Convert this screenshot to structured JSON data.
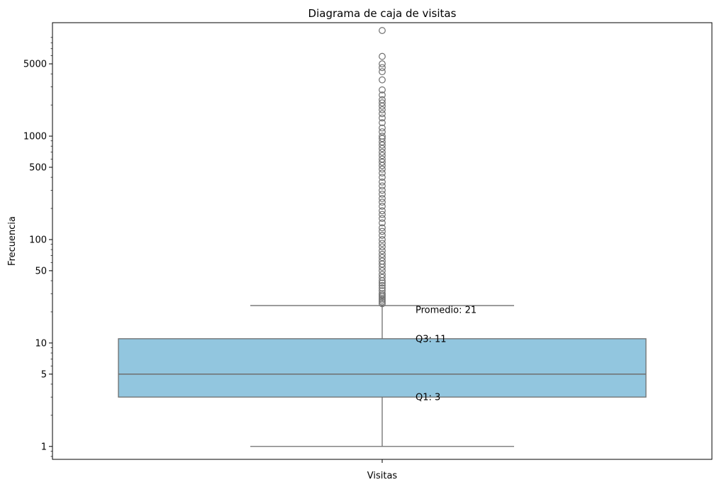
{
  "chart_data": {
    "type": "box",
    "title": "Diagrama de caja de visitas",
    "xlabel": "Visitas",
    "ylabel": "Frecuencia",
    "yscale": "log",
    "ylim": [
      0.75,
      12500
    ],
    "y_ticks": [
      {
        "value": 1,
        "label": "1"
      },
      {
        "value": 5,
        "label": "5"
      },
      {
        "value": 10,
        "label": "10"
      },
      {
        "value": 50,
        "label": "50"
      },
      {
        "value": 100,
        "label": "100"
      },
      {
        "value": 500,
        "label": "500"
      },
      {
        "value": 1000,
        "label": "1000"
      },
      {
        "value": 5000,
        "label": "5000"
      }
    ],
    "x_categories": [
      "Visitas"
    ],
    "box": {
      "q1": 3,
      "median": 5,
      "q3": 11,
      "whisker_low": 1,
      "whisker_high": 23,
      "color": "#92c6df"
    },
    "outliers": [
      24,
      25,
      26,
      27,
      28,
      29,
      30,
      32,
      34,
      36,
      38,
      40,
      43,
      46,
      50,
      54,
      58,
      62,
      67,
      72,
      78,
      85,
      92,
      100,
      110,
      120,
      130,
      145,
      160,
      175,
      190,
      210,
      230,
      250,
      275,
      300,
      330,
      360,
      400,
      440,
      480,
      520,
      560,
      600,
      650,
      700,
      760,
      820,
      880,
      950,
      1000,
      1100,
      1200,
      1350,
      1500,
      1650,
      1800,
      1950,
      2100,
      2250,
      2500,
      2800,
      3500,
      4200,
      4600,
      5000,
      5900,
      10500
    ],
    "annotations": [
      {
        "text": "Promedio: 21",
        "value": 21
      },
      {
        "text": "Q3: 11",
        "value": 11
      },
      {
        "text": "Q1: 3",
        "value": 3
      }
    ]
  }
}
